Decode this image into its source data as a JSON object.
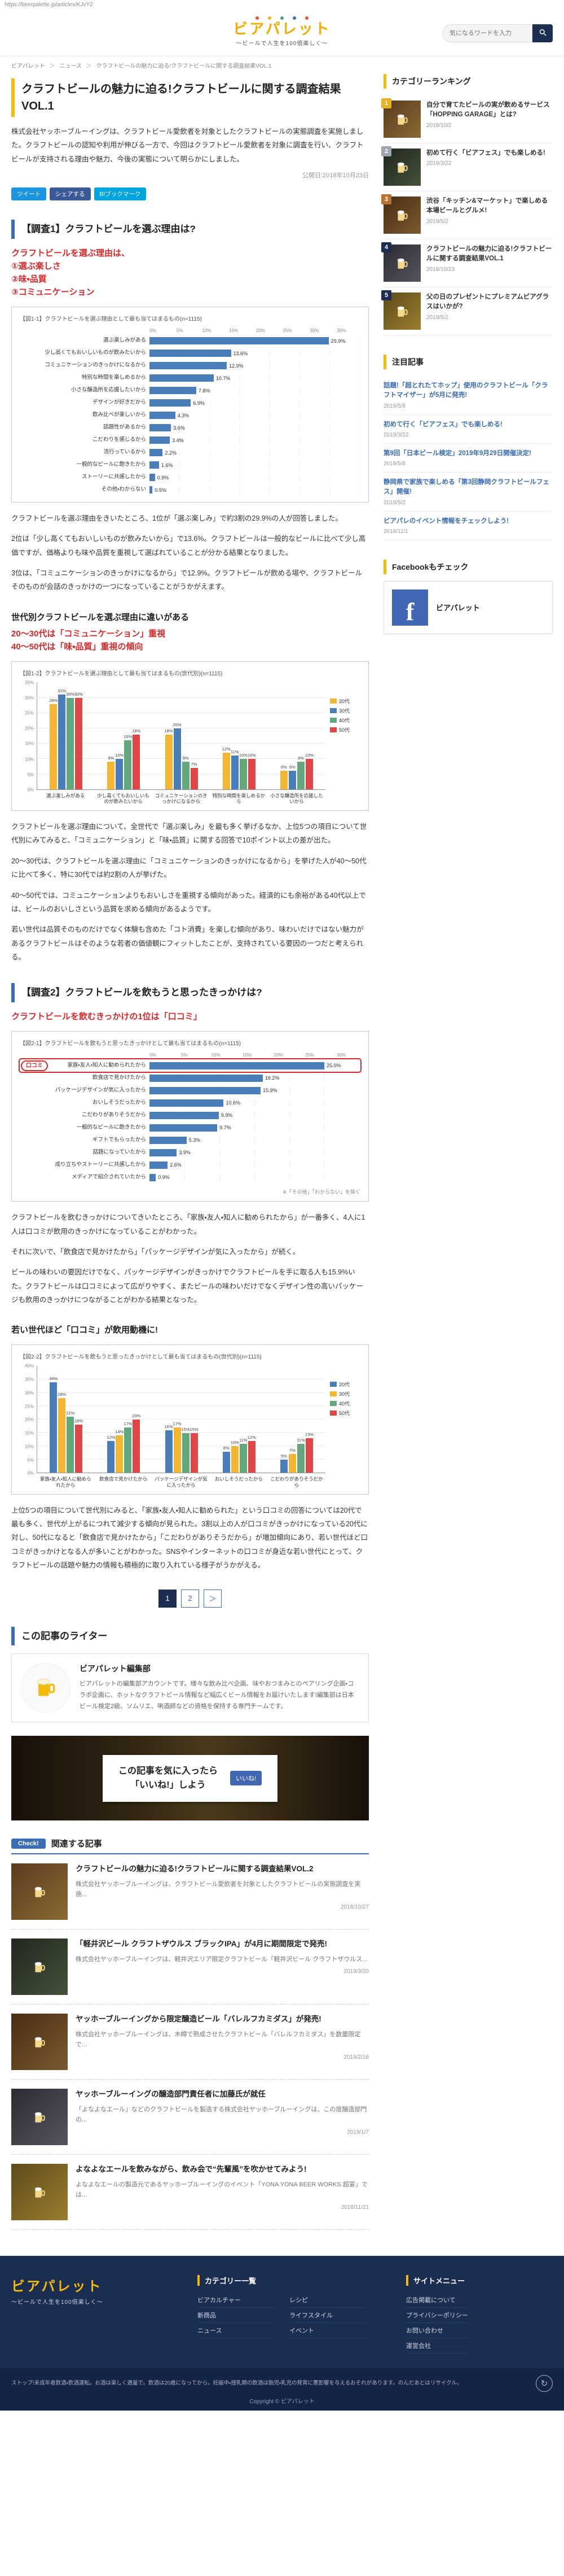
{
  "page": {
    "url": "https://beerpalette.jp/articles/KJvY2"
  },
  "icons": {
    "search": "magnifier",
    "beer": "beer-mug",
    "facebook_f": "f",
    "recycle": "↻",
    "separator": "＞"
  },
  "header": {
    "logo_title": "ビアパレット",
    "logo_subtitle": "〜ビールで人生を100倍楽しく〜",
    "search_placeholder": "気になるワードを入力"
  },
  "breadcrumb": {
    "items": [
      "ビアパレット",
      "ニュース",
      "クラフトビールの魅力に迫る!クラフトビールに関する調査結果VOL.1"
    ]
  },
  "article": {
    "title": "クラフトビールの魅力に迫る!クラフトビールに関する調査結果VOL.1",
    "lead": "株式会社ヤッホーブルーイングは、クラフトビール愛飲者を対象としたクラフトビールの実態調査を実施しました。クラフトビールの認知や利用が伸びる一方で、今回はクラフトビール愛飲者を対象に調査を行い、クラフトビールが支持される理由や魅力、今後の実態について明らかにしました。",
    "date": "公開日:2018年10月23日",
    "share": {
      "tweet": "ツイート",
      "share": "シェアする",
      "bookmark": "B!ブックマーク"
    }
  },
  "survey1": {
    "heading": "【調査1】クラフトビールを選ぶ理由は?",
    "red_intro": "クラフトビールを選ぶ理由は、",
    "reasons": [
      "①選ぶ楽しさ",
      "②味・品質",
      "③コミュニケーション"
    ],
    "paras": [
      "クラフトビールを選ぶ理由をきいたところ、1位が「選ぶ楽しみ」で約3割の29.9%の人が回答しました。",
      "2位は「少し高くてもおいしいものが飲みたいから」で13.6%。クラフトビールは一般的なビールに比べて少し高価ですが、価格よりも味や品質を重視して選ばれていることが分かる結果となりました。",
      "3位は、「コミュニケーションのきっかけになるから」で12.9%。クラフトビールが飲める場や、クラフトビールそのものが会話のきっかけの一つになっていることがうかがえます。"
    ],
    "sub_heading": "世代別クラフトビールを選ぶ理由に違いがある",
    "sub_red": [
      "20〜30代は「コミュニケーション」重視",
      "40〜50代は「味・品質」重視の傾向"
    ],
    "sub_paras": [
      "クラフトビールを選ぶ理由について、全世代で「選ぶ楽しみ」を最も多く挙げるなか、上位5つの項目について世代別にみてみると、「コミュニケーション」と「味・品質」に関する回答で10ポイント以上の差が出た。",
      "20〜30代は、クラフトビールを選ぶ理由に「コミュニケーションのきっかけになるから」を挙げた人が40〜50代に比べて多く、特に30代では約2割の人が挙げた。",
      "40〜50代では、コミュニケーションよりもおいしさを重視する傾向があった。経済的にも余裕がある40代以上では、ビールのおいしさという品質を求める傾向があるようです。",
      "若い世代は品質そのものだけでなく体験も含めた「コト消費」を楽しむ傾向があり、味わいだけではない魅力があるクラフトビールはそのような若者の価値観にフィットしたことが、支持されている要因の一つだと考えられる。"
    ]
  },
  "survey2": {
    "heading": "【調査2】クラフトビールを飲もうと思ったきっかけは?",
    "red": "クラフトビールを飲むきっかけの1位は「口コミ」",
    "paras": [
      "クラフトビールを飲むきっかけについてきいたところ、「家族・友人・知人に勧められたから」が一番多く、4人に1人は口コミが飲用のきっかけになっていることがわかった。",
      "それに次いで、「飲食店で見かけたから」「パッケージデザインが気に入ったから」が続く。",
      "ビールの味わいの要因だけでなく、パッケージデザインがきっかけでクラフトビールを手に取る人も15.9%いた。クラフトビールは口コミによって広がりやすく、またビールの味わいだけでなくデザイン性の高いパッケージも飲用のきっかけにつながることがわかる結果となった。"
    ],
    "sub_heading": "若い世代ほど「口コミ」が飲用動機に!",
    "sub_paras": [
      "上位5つの項目について世代別にみると、「家族・友人・知人に勧められた」という口コミの回答については20代で最も多く、世代が上がるにつれて減少する傾向が見られた。3割以上の人が口コミがきっかけになっている20代に対し、50代になると「飲食店で見かけたから」「こだわりがありそうだから」が増加傾向にあり、若い世代ほど口コミがきっかけとなる人が多いことがわかった。SNSやインターネットの口コミが身近な若い世代にとって、クラフトビールの話題や魅力の情報も積極的に取り入れている様子がうかがえる。"
    ]
  },
  "charts": {
    "c1": {
      "type": "bar",
      "caption": "【図1-1】クラフトビールを選ぶ理由として最も当てはまるもの(n=1115)",
      "axis_max": 35,
      "axis_step": 5,
      "color": "#4a7ebb",
      "unit": "%",
      "rows": [
        {
          "label": "選ぶ楽しみがある",
          "value": 29.9
        },
        {
          "label": "少し高くてもおいしいものが飲みたいから",
          "value": 13.6
        },
        {
          "label": "コミュニケーションのきっかけになるから",
          "value": 12.9
        },
        {
          "label": "特別な時間を楽しめるから",
          "value": 10.7
        },
        {
          "label": "小さな醸造所を応援したいから",
          "value": 7.8
        },
        {
          "label": "デザインが好きだから",
          "value": 6.9
        },
        {
          "label": "飲み比べが楽しいから",
          "value": 4.3
        },
        {
          "label": "話題性があるから",
          "value": 3.6
        },
        {
          "label": "こだわりを感じるから",
          "value": 3.4
        },
        {
          "label": "流行っているから",
          "value": 2.2
        },
        {
          "label": "一般的なビールに飽きたから",
          "value": 1.6
        },
        {
          "label": "ストーリーに共感したから",
          "value": 0.9
        },
        {
          "label": "その他・わからない",
          "value": 0.5
        }
      ]
    },
    "c2": {
      "type": "bar",
      "caption": "【図1-2】クラフトビールを選ぶ理由として最も当てはまるもの(世代別)(n=1115)",
      "ymax": 35,
      "ystep": 5,
      "unit": "%",
      "categories": [
        "選ぶ楽しみがある",
        "少し高くてもおいしいものが飲みたいから",
        "コミュニケーションのきっかけになるから",
        "特別な時間を楽しめるから",
        "小さな醸造所を応援したいから"
      ],
      "series": [
        {
          "name": "20代",
          "color": "#f2b632",
          "values": [
            28,
            9,
            18,
            12,
            6
          ]
        },
        {
          "name": "30代",
          "color": "#4a7ebb",
          "values": [
            31,
            10,
            20,
            11,
            6
          ]
        },
        {
          "name": "40代",
          "color": "#62a87c",
          "values": [
            30,
            16,
            9,
            10,
            9
          ]
        },
        {
          "name": "50代",
          "color": "#e04646",
          "values": [
            30,
            18,
            7,
            10,
            10
          ]
        }
      ]
    },
    "c3": {
      "type": "bar",
      "caption": "【図2-1】クラフトビールを飲もうと思ったきっかけとして最も当てはまるもの(n=1115)",
      "note": "※「その他」「わからない」を除く",
      "axis_max": 30,
      "axis_step": 5,
      "color": "#4a7ebb",
      "unit": "%",
      "callout": "口コミ",
      "rows": [
        {
          "label": "家族・友人・知人に勧められたから",
          "value": 25.0,
          "highlight": true
        },
        {
          "label": "飲食店で見かけたから",
          "value": 16.2
        },
        {
          "label": "パッケージデザインが気に入ったから",
          "value": 15.9
        },
        {
          "label": "おいしそうだったから",
          "value": 10.6
        },
        {
          "label": "こだわりがありそうだから",
          "value": 9.9
        },
        {
          "label": "一般的なビールに飽きたから",
          "value": 9.7
        },
        {
          "label": "ギフトでもらったから",
          "value": 5.3
        },
        {
          "label": "話題になっていたから",
          "value": 3.9
        },
        {
          "label": "成り立ちやストーリーに共感したから",
          "value": 2.6
        },
        {
          "label": "メディアで紹介されていたから",
          "value": 0.9
        }
      ]
    },
    "c4": {
      "type": "bar",
      "caption": "【図2-2】クラフトビールを飲もうと思ったきっかけとして最も当てはまるもの(世代別)(n=1115)",
      "ymax": 40,
      "ystep": 5,
      "unit": "%",
      "categories": [
        "家族・友人・知人に勧められたから",
        "飲食店で見かけたから",
        "パッケージデザインが気に入ったから",
        "おいしそうだったから",
        "こだわりがありそうだから"
      ],
      "series": [
        {
          "name": "20代",
          "color": "#4a7ebb",
          "values": [
            34,
            12,
            16,
            8,
            5
          ]
        },
        {
          "name": "30代",
          "color": "#f2b632",
          "values": [
            28,
            14,
            17,
            10,
            7
          ]
        },
        {
          "name": "40代",
          "color": "#62a87c",
          "values": [
            21,
            17,
            15,
            11,
            11
          ]
        },
        {
          "name": "50代",
          "color": "#e04646",
          "values": [
            18,
            20,
            15,
            12,
            13
          ]
        }
      ]
    }
  },
  "pagination": {
    "items": [
      "1",
      "2",
      "＞"
    ]
  },
  "writer": {
    "heading": "この記事のライター",
    "name": "ビアパレット編集部",
    "bio": "ビアパレットの編集部アカウントです。様々な飲み比べ企画、味やおつまみとのペアリング企画・コラボ企画に、ホットなクラフトビール情報など幅広くビール情報をお届けいたします!編集部は日本ビール検定2級、ソムリエ、唎酒師などの資格を保持する専門チームです。",
    "beer_facts": ""
  },
  "like": {
    "line1": "この記事を気に入ったら",
    "line2": "「いいね!」しよう",
    "button": "いいね!"
  },
  "related": {
    "tab": "Check!",
    "heading": "関連する記事",
    "items": [
      {
        "title": "クラフトビールの魅力に迫る!クラフトビールに関する調査結果VOL.2",
        "desc": "株式会社ヤッホーブルーイングは、クラフトビール愛飲者を対象としたクラフトビールの実態調査を実施...",
        "date": "2018/10/27"
      },
      {
        "title": "「軽井沢ビール クラフトザウルス ブラックIPA」が4月に期間限定で発売!",
        "desc": "株式会社ヤッホーブルーイングは、軽井沢エリア限定クラフトビール「軽井沢ビール クラフトザウルス...",
        "date": "2019/3/20"
      },
      {
        "title": "ヤッホーブルーイングから限定醸造ビール「バレルフカミダス」が発売!",
        "desc": "株式会社ヤッホーブルーイングは、木樽で熟成させたクラフトビール「バレルフカミダス」を数量限定で...",
        "date": "2019/2/18"
      },
      {
        "title": "ヤッホーブルーイングの醸造部門責任者に加藤氏が就任",
        "desc": "「よなよなエール」などのクラフトビールを製造する株式会社ヤッホーブルーイングは、この度醸造部門の...",
        "date": "2019/1/7"
      },
      {
        "title": "よなよなエールを飲みながら、飲み会で“先輩風”を吹かせてみよう!",
        "desc": "よなよなエールの製造元であるヤッホーブルーイングのイベント「YONA YONA BEER WORKS 超宴」では...",
        "date": "2018/11/21"
      }
    ]
  },
  "sidebar": {
    "ranking": {
      "heading": "カテゴリーランキング",
      "badge_colors": [
        "#e6b422",
        "#9ea5ad",
        "#b87333",
        "#1c2d52",
        "#1c2d52"
      ],
      "items": [
        {
          "rank": 1,
          "title": "自分で育てたビールの実が飲めるサービス「HOPPING GARAGE」とは?",
          "date": "2018/10/2"
        },
        {
          "rank": 2,
          "title": "初めて行く「ビアフェス」でも楽しめる!",
          "date": "2019/3/22"
        },
        {
          "rank": 3,
          "title": "渋谷「キッチン&マーケット」で楽しめる本場ビールとグルメ!",
          "date": "2019/5/2"
        },
        {
          "rank": 4,
          "title": "クラフトビールの魅力に迫る!クラフトビールに関する調査結果VOL.1",
          "date": "2018/10/23"
        },
        {
          "rank": 5,
          "title": "父の日のプレゼントにプレミアムビアグラスはいかが?",
          "date": "2019/5/2"
        }
      ]
    },
    "notable": {
      "heading": "注目記事",
      "items": [
        {
          "title": "話題!「超とれたてホップ」使用のクラフトビール「クラフトマイザー」が5月に発売!",
          "date": "2019/5/8"
        },
        {
          "title": "初めて行く「ビアフェス」でも楽しめる!",
          "date": "2019/3/22"
        },
        {
          "title": "第9回「日本ビール検定」2019年9月29日開催決定!",
          "date": "2019/5/8"
        },
        {
          "title": "静岡県で家族で楽しめる「第3回静岡クラフトビールフェス」開催!",
          "date": "2019/5/2"
        },
        {
          "title": "ビアパレのイベント情報をチェックしよう!",
          "date": "2018/11/1"
        }
      ]
    },
    "facebook": {
      "heading": "Facebookもチェック",
      "page_name": "ビアパレット"
    }
  },
  "footer": {
    "logo_title": "ビアパレット",
    "logo_subtitle": "〜ビールで人生を100倍楽しく〜",
    "categories": {
      "heading": "カテゴリー一覧",
      "items": [
        "ビアカルチャー",
        "レシピ",
        "新商品",
        "ライフスタイル",
        "ニュース",
        "イベント"
      ]
    },
    "sitemenu": {
      "heading": "サイトメニュー",
      "items": [
        "広告掲載について",
        "プライバシーポリシー",
        "お問い合わせ",
        "運営会社"
      ]
    },
    "notice": "ストップ!未成年者飲酒・飲酒運転。お酒は楽しく適量で。飲酒は20歳になってから。妊娠中・授乳期の飲酒は胎児・乳児の発育に悪影響を与えるおそれがあります。のんだあとはリサイクル。",
    "copyright": "Copyright © ビアパレット"
  }
}
